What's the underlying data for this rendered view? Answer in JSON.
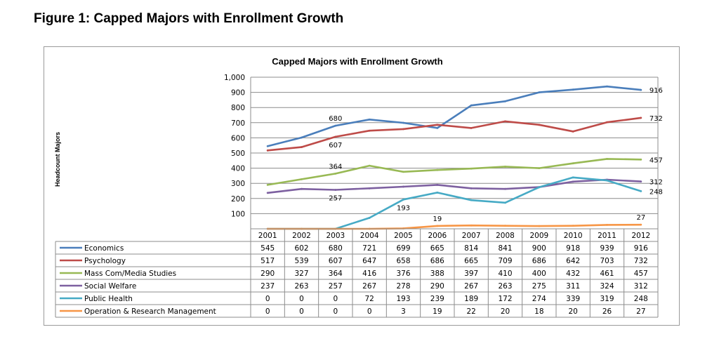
{
  "figure_title": "Figure 1: Capped Majors with Enrollment Growth",
  "chart_data": {
    "type": "line",
    "title": "Capped Majors with Enrollment Growth",
    "xlabel": "",
    "ylabel": "Headcount Majors",
    "ylim": [
      0,
      1000
    ],
    "yticks": [
      100,
      200,
      300,
      400,
      500,
      600,
      700,
      800,
      900,
      1000
    ],
    "ytick_labels": [
      "100",
      "200",
      "300",
      "400",
      "500",
      "600",
      "700",
      "800",
      "900",
      "1,000"
    ],
    "grid": true,
    "legend_placement": "data table below chart",
    "categories": [
      "2001",
      "2002",
      "2003",
      "2004",
      "2005",
      "2006",
      "2007",
      "2008",
      "2009",
      "2010",
      "2011",
      "2012"
    ],
    "series": [
      {
        "name": "Economics",
        "color": "#4a7ebb",
        "values": [
          545,
          602,
          680,
          721,
          699,
          665,
          814,
          841,
          900,
          918,
          939,
          916
        ]
      },
      {
        "name": "Psychology",
        "color": "#be4b48",
        "values": [
          517,
          539,
          607,
          647,
          658,
          686,
          665,
          709,
          686,
          642,
          703,
          732
        ]
      },
      {
        "name": "Mass Com/Media Studies",
        "color": "#98b954",
        "values": [
          290,
          327,
          364,
          416,
          376,
          388,
          397,
          410,
          400,
          432,
          461,
          457
        ]
      },
      {
        "name": "Social Welfare",
        "color": "#7d60a0",
        "values": [
          237,
          263,
          257,
          267,
          278,
          290,
          267,
          263,
          275,
          311,
          324,
          312
        ]
      },
      {
        "name": "Public Health",
        "color": "#46aac5",
        "values": [
          0,
          0,
          0,
          72,
          193,
          239,
          189,
          172,
          274,
          339,
          319,
          248
        ]
      },
      {
        "name": "Operation & Research Management",
        "color": "#f79646",
        "values": [
          0,
          0,
          0,
          0,
          3,
          19,
          22,
          20,
          18,
          20,
          26,
          27
        ]
      }
    ],
    "annotations": [
      {
        "series": 0,
        "index": 2,
        "text": "680",
        "pos": "above"
      },
      {
        "series": 1,
        "index": 2,
        "text": "607",
        "pos": "below"
      },
      {
        "series": 2,
        "index": 2,
        "text": "364",
        "pos": "above"
      },
      {
        "series": 3,
        "index": 2,
        "text": "257",
        "pos": "below"
      },
      {
        "series": 4,
        "index": 4,
        "text": "193",
        "pos": "below"
      },
      {
        "series": 5,
        "index": 5,
        "text": "19",
        "pos": "above"
      },
      {
        "series": 0,
        "index": 11,
        "text": "916",
        "pos": "right"
      },
      {
        "series": 1,
        "index": 11,
        "text": "732",
        "pos": "right"
      },
      {
        "series": 2,
        "index": 11,
        "text": "457",
        "pos": "right"
      },
      {
        "series": 3,
        "index": 11,
        "text": "312",
        "pos": "right"
      },
      {
        "series": 4,
        "index": 11,
        "text": "248",
        "pos": "right"
      },
      {
        "series": 5,
        "index": 11,
        "text": "27",
        "pos": "above"
      }
    ]
  }
}
